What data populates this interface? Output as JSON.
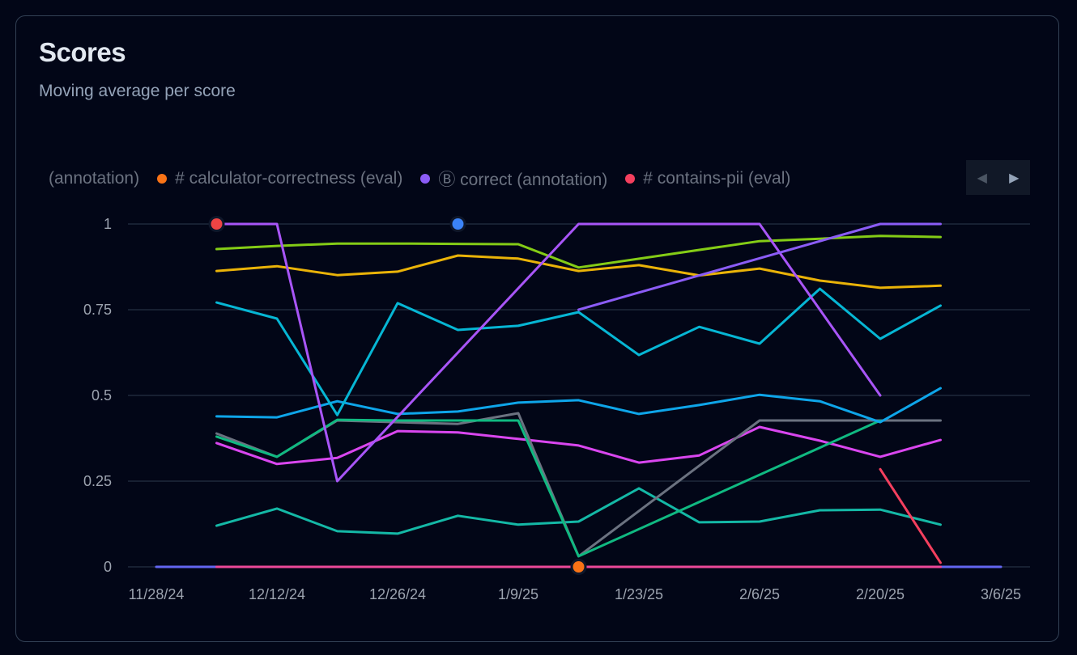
{
  "header": {
    "title": "Scores",
    "subtitle": "Moving average per score"
  },
  "legend": {
    "items": [
      {
        "label": "(annotation)",
        "color": null
      },
      {
        "label": "# calculator-correctness (eval)",
        "color": "#f97316"
      },
      {
        "label": "Ⓑ correct (annotation)",
        "color": "#8b5cf6"
      },
      {
        "label": "# contains-pii (eval)",
        "color": "#f43f5e"
      }
    ],
    "prev_icon": "caret-left-icon",
    "next_icon": "caret-right-icon",
    "prev_glyph": "◀",
    "next_glyph": "▶"
  },
  "chart_data": {
    "type": "line",
    "title": "Scores",
    "subtitle": "Moving average per score",
    "xlabel": "",
    "ylabel": "",
    "x_ticks": [
      "11/28/24",
      "12/12/24",
      "12/26/24",
      "1/9/25",
      "1/23/25",
      "2/6/25",
      "2/20/25",
      "3/6/25"
    ],
    "y_ticks": [
      {
        "value": 0,
        "label": "0"
      },
      {
        "value": 0.25,
        "label": "0.25"
      },
      {
        "value": 0.5,
        "label": "0.5"
      },
      {
        "value": 0.75,
        "label": "0.75"
      },
      {
        "value": 1,
        "label": "1"
      }
    ],
    "ylim": [
      0,
      1
    ],
    "grid": true,
    "x": [
      "11/28/24",
      "12/5/24",
      "12/12/24",
      "12/19/24",
      "12/26/24",
      "1/2/25",
      "1/9/25",
      "1/16/25",
      "1/23/25",
      "1/30/25",
      "2/6/25",
      "2/13/25",
      "2/20/25",
      "2/27/25",
      "3/6/25"
    ],
    "series": [
      {
        "color": "#6366f1",
        "values": [
          0,
          0,
          0,
          0,
          0,
          0,
          0,
          0,
          0,
          0,
          0,
          0,
          0,
          0,
          0
        ]
      },
      {
        "color": "#ec4899",
        "values": [
          null,
          0,
          0,
          0,
          0,
          0,
          0,
          0,
          0,
          0,
          0,
          0,
          0,
          0,
          null
        ]
      },
      {
        "color": "#14b8a6",
        "values": [
          null,
          0.12,
          0.17,
          0.104,
          0.097,
          0.149,
          0.123,
          0.132,
          0.229,
          0.13,
          0.132,
          0.165,
          0.167,
          0.123,
          null
        ]
      },
      {
        "color": "#d946ef",
        "values": [
          null,
          0.361,
          0.3,
          0.318,
          0.396,
          0.392,
          0.373,
          0.354,
          0.304,
          0.325,
          0.408,
          0.368,
          0.321,
          0.37,
          null
        ]
      },
      {
        "color": "#6b7280",
        "values": [
          null,
          0.389,
          0.321,
          0.427,
          0.422,
          0.417,
          0.448,
          0.031,
          null,
          null,
          0.427,
          0.427,
          0.427,
          0.427,
          null
        ]
      },
      {
        "color": "#10b981",
        "values": [
          null,
          0.38,
          0.321,
          0.429,
          0.427,
          0.427,
          0.427,
          0.031,
          null,
          null,
          null,
          null,
          0.427,
          null,
          null
        ]
      },
      {
        "color": "#0ea5e9",
        "values": [
          null,
          0.439,
          0.436,
          0.483,
          0.446,
          0.453,
          0.479,
          0.486,
          0.446,
          0.472,
          0.502,
          0.483,
          0.422,
          0.521,
          null
        ]
      },
      {
        "color": "#06b6d4",
        "values": [
          null,
          0.771,
          0.724,
          0.443,
          0.769,
          0.691,
          0.703,
          0.743,
          0.618,
          0.7,
          0.651,
          0.811,
          0.665,
          0.762,
          null
        ]
      },
      {
        "color": "#eab308",
        "values": [
          null,
          0.863,
          0.877,
          0.851,
          0.861,
          0.908,
          0.899,
          0.863,
          0.88,
          0.85,
          0.87,
          0.835,
          0.814,
          0.82,
          null
        ]
      },
      {
        "color": "#84cc16",
        "values": [
          null,
          0.927,
          0.936,
          0.943,
          0.943,
          0.942,
          0.941,
          0.873,
          null,
          null,
          0.95,
          0.957,
          0.965,
          0.962,
          null
        ]
      },
      {
        "color": "#a855f7",
        "values": [
          null,
          1,
          1,
          0.25,
          null,
          null,
          null,
          1,
          1,
          1,
          1,
          null,
          0.5,
          null,
          null
        ]
      },
      {
        "color": "#8b5cf6",
        "values": [
          null,
          null,
          null,
          null,
          null,
          null,
          null,
          0.75,
          null,
          null,
          null,
          null,
          1,
          1,
          null
        ]
      },
      {
        "color": "#f43f5e",
        "values": [
          null,
          null,
          null,
          null,
          null,
          null,
          null,
          null,
          null,
          null,
          null,
          null,
          0.285,
          0.012,
          null
        ]
      }
    ],
    "annotations": [
      {
        "x": "12/5/24",
        "y": 1,
        "color": "#ef4444"
      },
      {
        "x": "1/2/25",
        "y": 1,
        "color": "#3b82f6"
      },
      {
        "x": "1/16/25",
        "y": 0,
        "color": "#f97316"
      }
    ],
    "legend_position": "top"
  }
}
